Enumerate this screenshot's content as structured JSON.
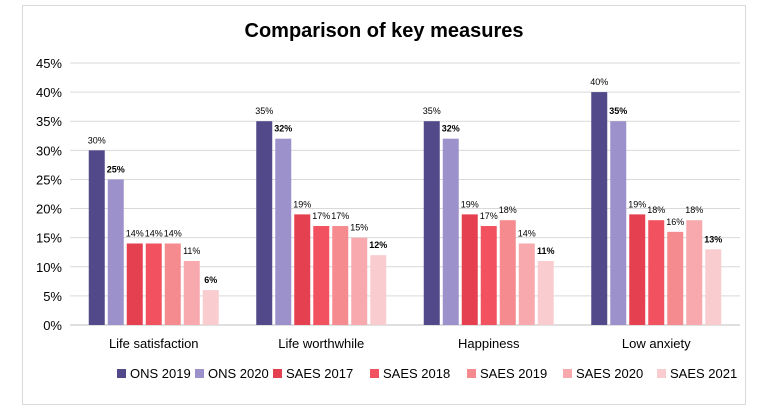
{
  "chart_data": {
    "type": "bar",
    "title": "Comparison of key measures",
    "xlabel": "",
    "ylabel": "",
    "ylim": [
      0,
      45
    ],
    "y_ticks": [
      "0%",
      "5%",
      "10%",
      "15%",
      "20%",
      "25%",
      "30%",
      "35%",
      "40%",
      "45%"
    ],
    "categories": [
      "Life satisfaction",
      "Life worthwhile",
      "Happiness",
      "Low anxiety"
    ],
    "series": [
      {
        "name": "ONS 2019",
        "color": "#52498a",
        "values": [
          30,
          35,
          35,
          40
        ],
        "labels": [
          "30%",
          "35%",
          "35%",
          "40%"
        ],
        "bold_labels": false
      },
      {
        "name": "ONS 2020",
        "color": "#9d91cb",
        "values": [
          25,
          32,
          32,
          35
        ],
        "labels": [
          "25%",
          "32%",
          "32%",
          "35%"
        ],
        "bold_labels": true
      },
      {
        "name": "SAES 2017",
        "color": "#e5404f",
        "values": [
          14,
          19,
          19,
          19
        ],
        "labels": [
          "14%",
          "19%",
          "19%",
          "19%"
        ],
        "bold_labels": false
      },
      {
        "name": "SAES 2018",
        "color": "#f2525f",
        "values": [
          14,
          17,
          17,
          18
        ],
        "labels": [
          "14%",
          "17%",
          "17%",
          "18%"
        ],
        "bold_labels": false
      },
      {
        "name": "SAES 2019",
        "color": "#f58a8f",
        "values": [
          14,
          17,
          18,
          16
        ],
        "labels": [
          "14%",
          "17%",
          "18%",
          "16%"
        ],
        "bold_labels": false
      },
      {
        "name": "SAES 2020",
        "color": "#f7a9ae",
        "values": [
          11,
          15,
          14,
          18
        ],
        "labels": [
          "11%",
          "15%",
          "14%",
          "18%"
        ],
        "bold_labels": false
      },
      {
        "name": "SAES 2021",
        "color": "#f9cdd0",
        "values": [
          6,
          12,
          11,
          13
        ],
        "labels": [
          "6%",
          "12%",
          "11%",
          "13%"
        ],
        "bold_labels": true
      }
    ],
    "grid": true,
    "legend_position": "bottom"
  }
}
